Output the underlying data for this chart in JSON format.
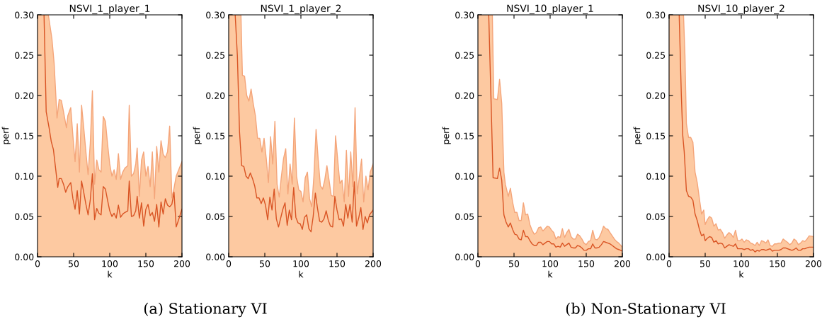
{
  "chart_data": [
    {
      "type": "line",
      "title": "NSVI_1_player_1",
      "xlabel": "k",
      "ylabel": "perf",
      "xlim": [
        0,
        200
      ],
      "xticks": [
        0,
        50,
        100,
        150,
        200
      ],
      "ylim": [
        0,
        0.3
      ],
      "yticks": [
        {
          "value": 0,
          "label": "0.00"
        },
        {
          "value": 0.05,
          "label": "0.05"
        },
        {
          "value": 0.1,
          "label": "0.10"
        },
        {
          "value": 0.15,
          "label": "0.15"
        },
        {
          "value": 0.2,
          "label": "0.20"
        },
        {
          "value": 0.25,
          "label": "0.25"
        },
        {
          "value": 0.3,
          "label": "0.30"
        }
      ],
      "grid": false,
      "annotations": [
        "(a) Stationary VI"
      ],
      "series": [
        {
          "type": "area",
          "color": "#f4a57a",
          "x": [
            0,
            15,
            20,
            23,
            27,
            30,
            33,
            36,
            40,
            42,
            46,
            49,
            52,
            55,
            58,
            61,
            64,
            67,
            70,
            73,
            76,
            79,
            82,
            85,
            88,
            91,
            94,
            97,
            100,
            103,
            106,
            109,
            112,
            115,
            118,
            121,
            125,
            127,
            130,
            133,
            136,
            138,
            141,
            144,
            147,
            150,
            153,
            156,
            159,
            162,
            165,
            168,
            171,
            174,
            177,
            180,
            183,
            186,
            189,
            192,
            200
          ],
          "values": [
            0.3,
            0.3,
            0.27,
            0.24,
            0.172,
            0.195,
            0.194,
            0.18,
            0.16,
            0.175,
            0.185,
            0.15,
            0.118,
            0.165,
            0.105,
            0.188,
            0.16,
            0.13,
            0.102,
            0.14,
            0.206,
            0.09,
            0.12,
            0.108,
            0.105,
            0.174,
            0.168,
            0.14,
            0.115,
            0.1,
            0.108,
            0.096,
            0.128,
            0.096,
            0.105,
            0.11,
            0.113,
            0.188,
            0.1,
            0.103,
            0.115,
            0.135,
            0.075,
            0.12,
            0.13,
            0.1,
            0.112,
            0.087,
            0.13,
            0.072,
            0.137,
            0.105,
            0.144,
            0.127,
            0.123,
            0.13,
            0.162,
            0.073,
            0.085,
            0.1,
            0.118
          ]
        },
        {
          "type": "line",
          "color": "#d95424",
          "x": [
            9,
            12,
            16,
            19,
            22,
            25,
            28,
            30,
            33,
            36,
            39,
            42,
            46,
            49,
            52,
            55,
            58,
            61,
            64,
            67,
            70,
            73,
            76,
            79,
            82,
            85,
            88,
            91,
            94,
            97,
            100,
            103,
            106,
            109,
            112,
            115,
            118,
            121,
            125,
            127,
            130,
            133,
            136,
            138,
            141,
            144,
            147,
            150,
            153,
            156,
            159,
            162,
            165,
            168,
            171,
            174,
            177,
            180,
            183,
            186,
            189,
            192,
            195,
            200
          ],
          "values": [
            0.3,
            0.18,
            0.16,
            0.143,
            0.133,
            0.11,
            0.086,
            0.097,
            0.097,
            0.09,
            0.08,
            0.087,
            0.092,
            0.072,
            0.059,
            0.082,
            0.053,
            0.094,
            0.08,
            0.065,
            0.052,
            0.07,
            0.103,
            0.046,
            0.06,
            0.054,
            0.052,
            0.087,
            0.084,
            0.07,
            0.057,
            0.05,
            0.054,
            0.048,
            0.064,
            0.049,
            0.053,
            0.055,
            0.057,
            0.094,
            0.05,
            0.051,
            0.057,
            0.075,
            0.048,
            0.067,
            0.038,
            0.059,
            0.065,
            0.051,
            0.055,
            0.044,
            0.065,
            0.037,
            0.068,
            0.053,
            0.072,
            0.064,
            0.062,
            0.065,
            0.08,
            0.037,
            0.045,
            0.059
          ]
        }
      ]
    },
    {
      "type": "line",
      "title": "NSVI_1_player_2",
      "xlabel": "k",
      "ylabel": "perf",
      "xlim": [
        0,
        200
      ],
      "xticks": [
        0,
        50,
        100,
        150,
        200
      ],
      "ylim": [
        0,
        0.3
      ],
      "yticks": [
        {
          "value": 0,
          "label": "0.00"
        },
        {
          "value": 0.05,
          "label": "0.05"
        },
        {
          "value": 0.1,
          "label": "0.10"
        },
        {
          "value": 0.15,
          "label": "0.15"
        },
        {
          "value": 0.2,
          "label": "0.20"
        },
        {
          "value": 0.25,
          "label": "0.25"
        },
        {
          "value": 0.3,
          "label": "0.30"
        }
      ],
      "grid": false,
      "series": [
        {
          "type": "area",
          "color": "#f4a57a",
          "x": [
            0,
            17,
            19,
            22,
            25,
            28,
            31,
            34,
            37,
            40,
            43,
            46,
            49,
            52,
            55,
            58,
            61,
            64,
            67,
            70,
            73,
            76,
            79,
            82,
            85,
            88,
            91,
            94,
            97,
            100,
            103,
            106,
            109,
            112,
            115,
            118,
            121,
            124,
            127,
            130,
            133,
            136,
            139,
            142,
            145,
            148,
            151,
            154,
            157,
            160,
            163,
            166,
            169,
            172,
            175,
            178,
            181,
            184,
            187,
            190,
            193,
            196,
            200
          ],
          "values": [
            0.3,
            0.3,
            0.225,
            0.224,
            0.2,
            0.193,
            0.208,
            0.19,
            0.175,
            0.147,
            0.147,
            0.13,
            0.147,
            0.122,
            0.092,
            0.149,
            0.115,
            0.168,
            0.09,
            0.074,
            0.1,
            0.122,
            0.134,
            0.078,
            0.115,
            0.09,
            0.172,
            0.1,
            0.083,
            0.081,
            0.068,
            0.098,
            0.105,
            0.072,
            0.062,
            0.1,
            0.158,
            0.12,
            0.088,
            0.084,
            0.095,
            0.113,
            0.095,
            0.076,
            0.075,
            0.15,
            0.12,
            0.091,
            0.095,
            0.068,
            0.132,
            0.075,
            0.13,
            0.087,
            0.185,
            0.078,
            0.1,
            0.121,
            0.068,
            0.1,
            0.083,
            0.105,
            0.115
          ]
        },
        {
          "type": "line",
          "color": "#d95424",
          "x": [
            9,
            12,
            15,
            18,
            21,
            24,
            27,
            30,
            33,
            36,
            39,
            42,
            45,
            48,
            51,
            54,
            57,
            60,
            63,
            66,
            69,
            72,
            75,
            78,
            81,
            84,
            87,
            90,
            93,
            96,
            99,
            102,
            105,
            108,
            111,
            114,
            117,
            120,
            123,
            126,
            129,
            132,
            135,
            138,
            141,
            144,
            147,
            150,
            153,
            156,
            159,
            162,
            165,
            168,
            171,
            174,
            177,
            180,
            183,
            186,
            189,
            192,
            195,
            200
          ],
          "values": [
            0.3,
            0.25,
            0.155,
            0.113,
            0.112,
            0.1,
            0.097,
            0.104,
            0.097,
            0.088,
            0.073,
            0.073,
            0.066,
            0.073,
            0.064,
            0.046,
            0.074,
            0.058,
            0.084,
            0.047,
            0.037,
            0.048,
            0.059,
            0.067,
            0.039,
            0.058,
            0.046,
            0.086,
            0.049,
            0.042,
            0.041,
            0.034,
            0.049,
            0.052,
            0.035,
            0.031,
            0.05,
            0.079,
            0.06,
            0.044,
            0.043,
            0.047,
            0.057,
            0.045,
            0.038,
            0.037,
            0.075,
            0.058,
            0.046,
            0.047,
            0.038,
            0.065,
            0.048,
            0.065,
            0.043,
            0.093,
            0.038,
            0.048,
            0.061,
            0.034,
            0.05,
            0.042,
            0.052,
            0.058
          ]
        }
      ]
    },
    {
      "type": "line",
      "title": "NSVI_10_player_1",
      "xlabel": "k",
      "ylabel": "perf",
      "xlim": [
        0,
        200
      ],
      "xticks": [
        0,
        50,
        100,
        150,
        200
      ],
      "ylim": [
        0,
        0.3
      ],
      "yticks": [
        {
          "value": 0,
          "label": "0.00"
        },
        {
          "value": 0.05,
          "label": "0.05"
        },
        {
          "value": 0.1,
          "label": "0.10"
        },
        {
          "value": 0.15,
          "label": "0.15"
        },
        {
          "value": 0.2,
          "label": "0.20"
        },
        {
          "value": 0.25,
          "label": "0.25"
        },
        {
          "value": 0.3,
          "label": "0.30"
        }
      ],
      "grid": false,
      "annotations": [
        "(b) Non-Stationary VI"
      ],
      "series": [
        {
          "type": "area",
          "color": "#f4a57a",
          "x": [
            0,
            20,
            22,
            27,
            30,
            33,
            36,
            38,
            42,
            45,
            48,
            51,
            54,
            57,
            60,
            63,
            66,
            69,
            72,
            75,
            78,
            81,
            84,
            87,
            90,
            93,
            96,
            99,
            102,
            105,
            108,
            111,
            114,
            117,
            120,
            123,
            126,
            129,
            132,
            135,
            138,
            141,
            144,
            147,
            150,
            153,
            156,
            159,
            162,
            165,
            168,
            171,
            174,
            177,
            180,
            183,
            186,
            189,
            192,
            195,
            200
          ],
          "values": [
            0.3,
            0.3,
            0.196,
            0.195,
            0.22,
            0.19,
            0.105,
            0.09,
            0.075,
            0.085,
            0.068,
            0.055,
            0.055,
            0.045,
            0.045,
            0.067,
            0.052,
            0.053,
            0.04,
            0.033,
            0.028,
            0.03,
            0.036,
            0.037,
            0.032,
            0.035,
            0.038,
            0.037,
            0.033,
            0.03,
            0.022,
            0.025,
            0.024,
            0.035,
            0.024,
            0.03,
            0.034,
            0.025,
            0.022,
            0.022,
            0.028,
            0.026,
            0.022,
            0.017,
            0.015,
            0.019,
            0.02,
            0.033,
            0.022,
            0.021,
            0.024,
            0.03,
            0.038,
            0.035,
            0.034,
            0.03,
            0.026,
            0.022,
            0.019,
            0.017,
            0.012
          ]
        },
        {
          "type": "line",
          "color": "#d95424",
          "x": [
            15,
            18,
            21,
            27,
            30,
            33,
            36,
            39,
            42,
            45,
            48,
            51,
            54,
            57,
            60,
            63,
            66,
            69,
            72,
            75,
            78,
            81,
            84,
            87,
            90,
            93,
            96,
            99,
            102,
            105,
            108,
            111,
            114,
            117,
            120,
            123,
            126,
            129,
            132,
            135,
            138,
            141,
            144,
            147,
            150,
            153,
            156,
            159,
            162,
            165,
            168,
            171,
            174,
            177,
            180,
            183,
            186,
            189,
            192,
            195,
            200
          ],
          "values": [
            0.3,
            0.2,
            0.098,
            0.097,
            0.11,
            0.095,
            0.052,
            0.043,
            0.037,
            0.042,
            0.034,
            0.028,
            0.027,
            0.022,
            0.021,
            0.033,
            0.025,
            0.025,
            0.02,
            0.016,
            0.014,
            0.014,
            0.018,
            0.018,
            0.015,
            0.017,
            0.019,
            0.019,
            0.016,
            0.016,
            0.012,
            0.013,
            0.012,
            0.017,
            0.013,
            0.015,
            0.017,
            0.012,
            0.011,
            0.011,
            0.014,
            0.013,
            0.011,
            0.008,
            0.008,
            0.01,
            0.01,
            0.016,
            0.011,
            0.011,
            0.012,
            0.015,
            0.019,
            0.018,
            0.017,
            0.016,
            0.014,
            0.012,
            0.01,
            0.009,
            0.007
          ]
        }
      ]
    },
    {
      "type": "line",
      "title": "NSVI_10_player_2",
      "xlabel": "k",
      "ylabel": "perf",
      "xlim": [
        0,
        200
      ],
      "xticks": [
        0,
        50,
        100,
        150,
        200
      ],
      "ylim": [
        0,
        0.3
      ],
      "yticks": [
        {
          "value": 0,
          "label": "0.00"
        },
        {
          "value": 0.05,
          "label": "0.05"
        },
        {
          "value": 0.1,
          "label": "0.10"
        },
        {
          "value": 0.15,
          "label": "0.15"
        },
        {
          "value": 0.2,
          "label": "0.20"
        },
        {
          "value": 0.25,
          "label": "0.25"
        },
        {
          "value": 0.3,
          "label": "0.30"
        }
      ],
      "grid": false,
      "series": [
        {
          "type": "area",
          "color": "#f4a57a",
          "x": [
            0,
            20,
            22,
            24,
            27,
            30,
            33,
            36,
            39,
            42,
            45,
            48,
            50,
            53,
            56,
            59,
            62,
            65,
            68,
            71,
            74,
            77,
            80,
            83,
            86,
            89,
            92,
            95,
            98,
            101,
            104,
            107,
            110,
            113,
            116,
            119,
            122,
            125,
            128,
            131,
            134,
            137,
            140,
            143,
            146,
            149,
            152,
            155,
            158,
            161,
            164,
            167,
            170,
            173,
            176,
            179,
            182,
            185,
            188,
            191,
            194,
            200
          ],
          "values": [
            0.3,
            0.3,
            0.25,
            0.165,
            0.148,
            0.148,
            0.142,
            0.105,
            0.092,
            0.072,
            0.053,
            0.058,
            0.04,
            0.046,
            0.05,
            0.048,
            0.038,
            0.041,
            0.033,
            0.034,
            0.03,
            0.023,
            0.027,
            0.03,
            0.028,
            0.024,
            0.033,
            0.02,
            0.02,
            0.022,
            0.018,
            0.021,
            0.02,
            0.017,
            0.016,
            0.014,
            0.018,
            0.014,
            0.02,
            0.019,
            0.017,
            0.021,
            0.014,
            0.013,
            0.016,
            0.016,
            0.017,
            0.017,
            0.022,
            0.02,
            0.018,
            0.015,
            0.017,
            0.022,
            0.02,
            0.015,
            0.017,
            0.02,
            0.019,
            0.022,
            0.026,
            0.025
          ]
        },
        {
          "type": "line",
          "color": "#d95424",
          "x": [
            14,
            17,
            19,
            21,
            24,
            27,
            30,
            33,
            36,
            39,
            42,
            45,
            48,
            50,
            53,
            56,
            59,
            62,
            65,
            68,
            71,
            74,
            77,
            80,
            83,
            86,
            89,
            92,
            95,
            98,
            101,
            104,
            107,
            110,
            113,
            116,
            119,
            122,
            125,
            128,
            131,
            134,
            137,
            140,
            143,
            146,
            149,
            152,
            155,
            158,
            161,
            164,
            167,
            170,
            173,
            176,
            179,
            182,
            185,
            188,
            191,
            194,
            200
          ],
          "values": [
            0.3,
            0.2,
            0.15,
            0.13,
            0.082,
            0.075,
            0.074,
            0.07,
            0.053,
            0.045,
            0.034,
            0.026,
            0.028,
            0.02,
            0.023,
            0.025,
            0.024,
            0.018,
            0.02,
            0.016,
            0.017,
            0.016,
            0.011,
            0.013,
            0.015,
            0.014,
            0.013,
            0.016,
            0.01,
            0.01,
            0.01,
            0.009,
            0.01,
            0.01,
            0.008,
            0.009,
            0.006,
            0.008,
            0.007,
            0.009,
            0.009,
            0.008,
            0.009,
            0.01,
            0.007,
            0.008,
            0.008,
            0.008,
            0.009,
            0.011,
            0.011,
            0.01,
            0.009,
            0.008,
            0.009,
            0.011,
            0.008,
            0.008,
            0.01,
            0.01,
            0.011,
            0.012,
            0.012
          ]
        }
      ]
    }
  ]
}
